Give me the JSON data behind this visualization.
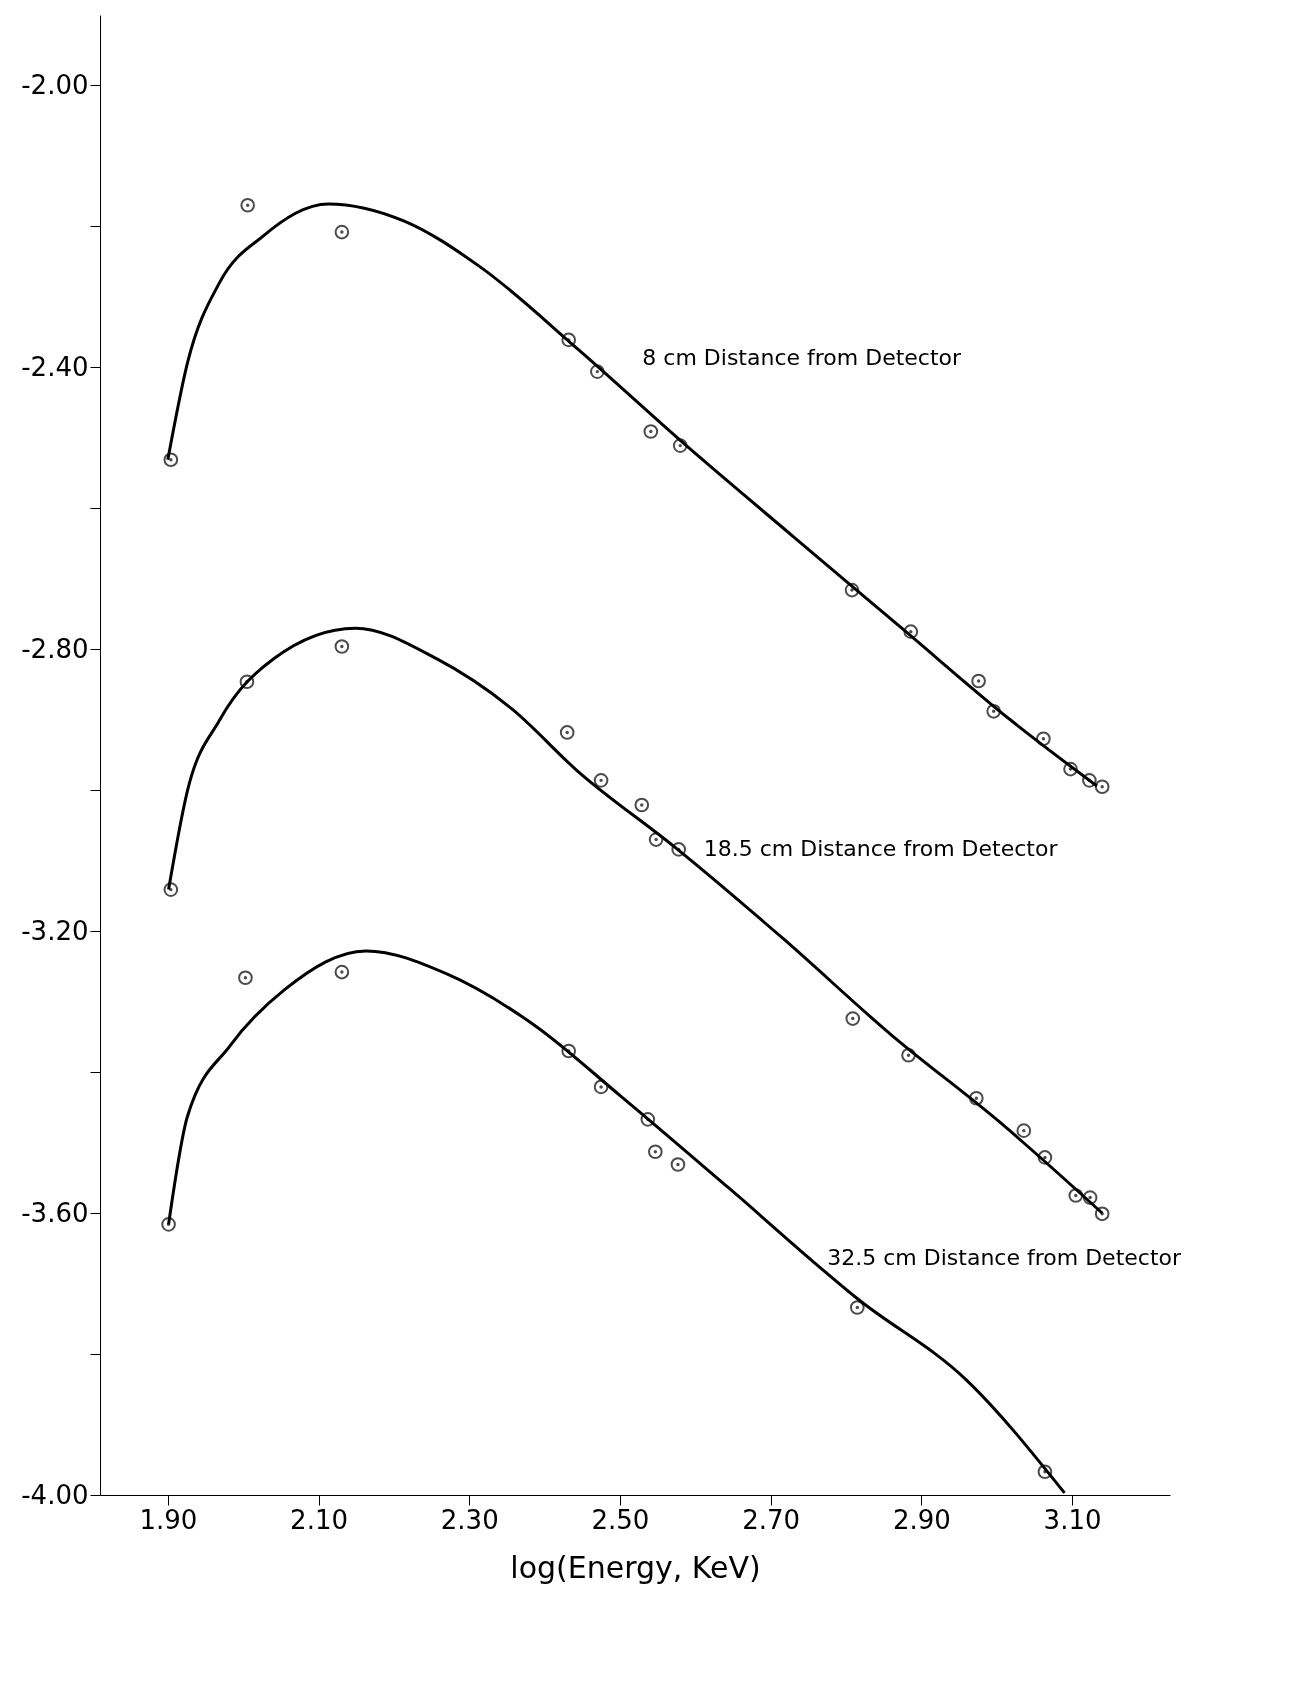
{
  "chart_data": {
    "type": "scatter",
    "xlabel": "log(Energy, KeV)",
    "xlim": [
      1.81,
      3.23
    ],
    "ylim": [
      -4.0,
      -1.9
    ],
    "xticks": [
      {
        "value": 1.9,
        "label": "1.90"
      },
      {
        "value": 2.1,
        "label": "2.10"
      },
      {
        "value": 2.3,
        "label": "2.30"
      },
      {
        "value": 2.5,
        "label": "2.50"
      },
      {
        "value": 2.7,
        "label": "2.70"
      },
      {
        "value": 2.9,
        "label": "2.90"
      },
      {
        "value": 3.1,
        "label": "3.10"
      }
    ],
    "yticks": [
      {
        "value": -2.0,
        "label": "-2.00"
      },
      {
        "value": -2.2,
        "label": null
      },
      {
        "value": -2.4,
        "label": "-2.40"
      },
      {
        "value": -2.6,
        "label": null
      },
      {
        "value": -2.8,
        "label": "-2.80"
      },
      {
        "value": -3.0,
        "label": null
      },
      {
        "value": -3.2,
        "label": "-3.20"
      },
      {
        "value": -3.4,
        "label": null
      },
      {
        "value": -3.6,
        "label": "-3.60"
      },
      {
        "value": -3.8,
        "label": null
      },
      {
        "value": -4.0,
        "label": "-4.00"
      }
    ],
    "grid": false,
    "marker": "circle",
    "series": [
      {
        "color": "#000000",
        "x": [
          1.904,
          2.006,
          2.131,
          2.432,
          2.47,
          2.541,
          2.58,
          2.808,
          2.886,
          2.976,
          2.996,
          3.062,
          3.098,
          3.123,
          3.14
        ],
        "values": [
          -2.531,
          -2.17,
          -2.208,
          -2.361,
          -2.406,
          -2.491,
          -2.511,
          -2.716,
          -2.775,
          -2.845,
          -2.888,
          -2.927,
          -2.97,
          -2.986,
          -2.995
        ]
      },
      {
        "type": "line",
        "marker": "none",
        "color": "#000000",
        "x": [
          1.9,
          1.926,
          1.969,
          2.026,
          2.113,
          2.213,
          2.314,
          2.443,
          2.587,
          2.73,
          2.874,
          3.018,
          3.133
        ],
        "values": [
          -2.531,
          -2.394,
          -2.279,
          -2.214,
          -2.168,
          -2.192,
          -2.257,
          -2.373,
          -2.51,
          -2.64,
          -2.77,
          -2.9,
          -2.994
        ]
      },
      {
        "color": "#000000",
        "x": [
          1.904,
          2.005,
          2.131,
          2.43,
          2.475,
          2.529,
          2.548,
          2.578,
          2.809,
          2.883,
          2.973,
          3.036,
          3.064,
          3.105,
          3.124,
          3.14
        ],
        "values": [
          -3.141,
          -2.846,
          -2.796,
          -2.918,
          -2.986,
          -3.021,
          -3.07,
          -3.084,
          -3.324,
          -3.376,
          -3.437,
          -3.483,
          -3.521,
          -3.575,
          -3.578,
          -3.601
        ]
      },
      {
        "type": "line",
        "marker": "none",
        "color": "#000000",
        "x": [
          1.901,
          1.926,
          1.969,
          2.041,
          2.149,
          2.256,
          2.357,
          2.443,
          2.572,
          2.716,
          2.86,
          3.003,
          3.14
        ],
        "values": [
          -3.141,
          -3.001,
          -2.9,
          -2.813,
          -2.77,
          -2.813,
          -2.885,
          -2.972,
          -3.08,
          -3.21,
          -3.347,
          -3.47,
          -3.6
        ]
      },
      {
        "color": "#000000",
        "x": [
          1.901,
          2.003,
          2.131,
          2.432,
          2.475,
          2.537,
          2.547,
          2.577,
          2.815,
          3.064
        ],
        "values": [
          -3.616,
          -3.266,
          -3.258,
          -3.37,
          -3.421,
          -3.467,
          -3.513,
          -3.531,
          -3.734,
          -3.967
        ]
      },
      {
        "type": "line",
        "marker": "none",
        "color": "#000000",
        "x": [
          1.901,
          1.926,
          1.983,
          2.055,
          2.163,
          2.271,
          2.386,
          2.501,
          2.644,
          2.817,
          2.961,
          3.09
        ],
        "values": [
          -3.616,
          -3.463,
          -3.362,
          -3.283,
          -3.228,
          -3.261,
          -3.333,
          -3.434,
          -3.564,
          -3.723,
          -3.838,
          -3.997
        ]
      }
    ],
    "annotations": [
      {
        "text": "8 cm Distance from Detector",
        "x": 2.47,
        "y": -2.406
      },
      {
        "text": "18.5 cm Distance from Detector",
        "x": 2.578,
        "y": -3.084
      },
      {
        "text": "32.5 cm Distance from Detector",
        "x": 2.815,
        "y": -3.734
      }
    ]
  }
}
